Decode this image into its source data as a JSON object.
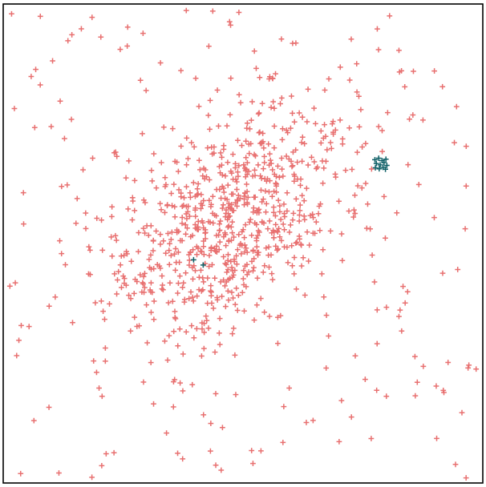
{
  "chart_data": {
    "type": "scatter",
    "title": "",
    "xlabel": "",
    "ylabel": "",
    "grid": false,
    "legend": "none",
    "marker": "plus",
    "xlim": [
      0,
      100
    ],
    "ylim": [
      0,
      100
    ],
    "series": [
      {
        "color": "#e87070",
        "distribution": {
          "background_count": 220,
          "cluster_count": 720,
          "cluster_center": [
            48,
            55
          ],
          "cluster_major_sd": 15,
          "cluster_minor_sd": 9,
          "cluster_angle_deg": 42,
          "seed": 7
        }
      },
      {
        "color": "#0e5f66",
        "points": [
          [
            77.5,
            67.5
          ],
          [
            78.3,
            67.8
          ],
          [
            79.0,
            67.3
          ],
          [
            79.8,
            67.6
          ],
          [
            77.8,
            66.7
          ],
          [
            78.6,
            66.4
          ],
          [
            79.4,
            66.9
          ],
          [
            80.0,
            66.3
          ],
          [
            77.6,
            65.8
          ],
          [
            78.4,
            65.6
          ],
          [
            79.2,
            65.9
          ],
          [
            79.7,
            65.5
          ],
          [
            39.7,
            46.6
          ],
          [
            41.7,
            45.5
          ]
        ]
      }
    ]
  }
}
